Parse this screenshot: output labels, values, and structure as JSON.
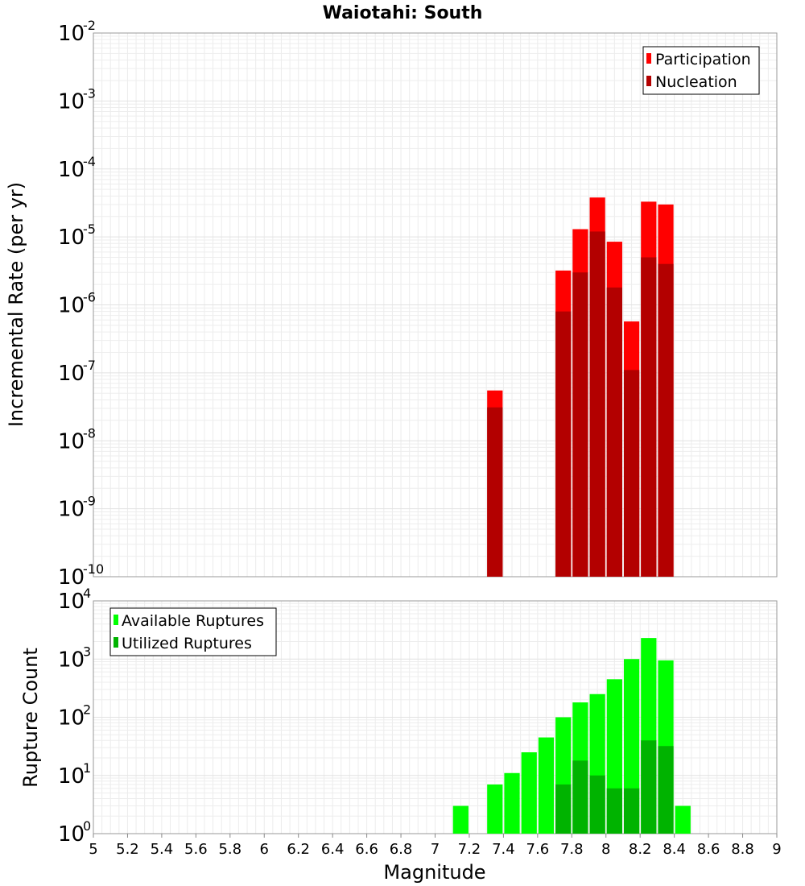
{
  "chart_data": [
    {
      "type": "bar",
      "title": "Waiotahi: South",
      "xlabel": "",
      "ylabel": "Incremental Rate (per yr)",
      "yscale": "log",
      "ylim_exp": [
        -10,
        -2
      ],
      "xlim": [
        5,
        9
      ],
      "bin_width": 0.1,
      "legend_position": "top-right",
      "series": [
        {
          "name": "Participation",
          "color": "#ff0000",
          "x": [
            7.35,
            7.75,
            7.85,
            7.95,
            8.05,
            8.15,
            8.25,
            8.35
          ],
          "values": [
            5.5e-08,
            3.2e-06,
            1.3e-05,
            3.8e-05,
            8.5e-06,
            5.7e-07,
            3.3e-05,
            3e-05
          ]
        },
        {
          "name": "Nucleation",
          "color": "#b30000",
          "x": [
            7.35,
            7.75,
            7.85,
            7.95,
            8.05,
            8.15,
            8.25,
            8.35
          ],
          "values": [
            3.1e-08,
            8e-07,
            3e-06,
            1.2e-05,
            1.8e-06,
            1.1e-07,
            5e-06,
            4e-06
          ]
        }
      ]
    },
    {
      "type": "bar",
      "title": "",
      "xlabel": "Magnitude",
      "ylabel": "Rupture Count",
      "yscale": "log",
      "ylim_exp": [
        0,
        4
      ],
      "xlim": [
        5,
        9
      ],
      "bin_width": 0.1,
      "x_ticks": [
        "5",
        "5.2",
        "5.4",
        "5.6",
        "5.8",
        "6",
        "6.2",
        "6.4",
        "6.6",
        "6.8",
        "7",
        "7.2",
        "7.4",
        "7.6",
        "7.8",
        "8",
        "8.2",
        "8.4",
        "8.6",
        "8.8",
        "9"
      ],
      "legend_position": "top-left",
      "series": [
        {
          "name": "Available Ruptures",
          "color": "#00ff00",
          "x": [
            7.15,
            7.35,
            7.45,
            7.55,
            7.65,
            7.75,
            7.85,
            7.95,
            8.05,
            8.15,
            8.25,
            8.35,
            8.45
          ],
          "values": [
            3,
            7,
            11,
            25,
            45,
            100,
            180,
            250,
            450,
            1000,
            2300,
            950,
            3
          ]
        },
        {
          "name": "Utilized Ruptures",
          "color": "#00b300",
          "x": [
            7.35,
            7.45,
            7.65,
            7.75,
            7.85,
            7.95,
            8.05,
            8.15,
            8.25,
            8.35
          ],
          "values": [
            1,
            1,
            1,
            7,
            18,
            10,
            6,
            6,
            40,
            32
          ]
        }
      ]
    }
  ]
}
